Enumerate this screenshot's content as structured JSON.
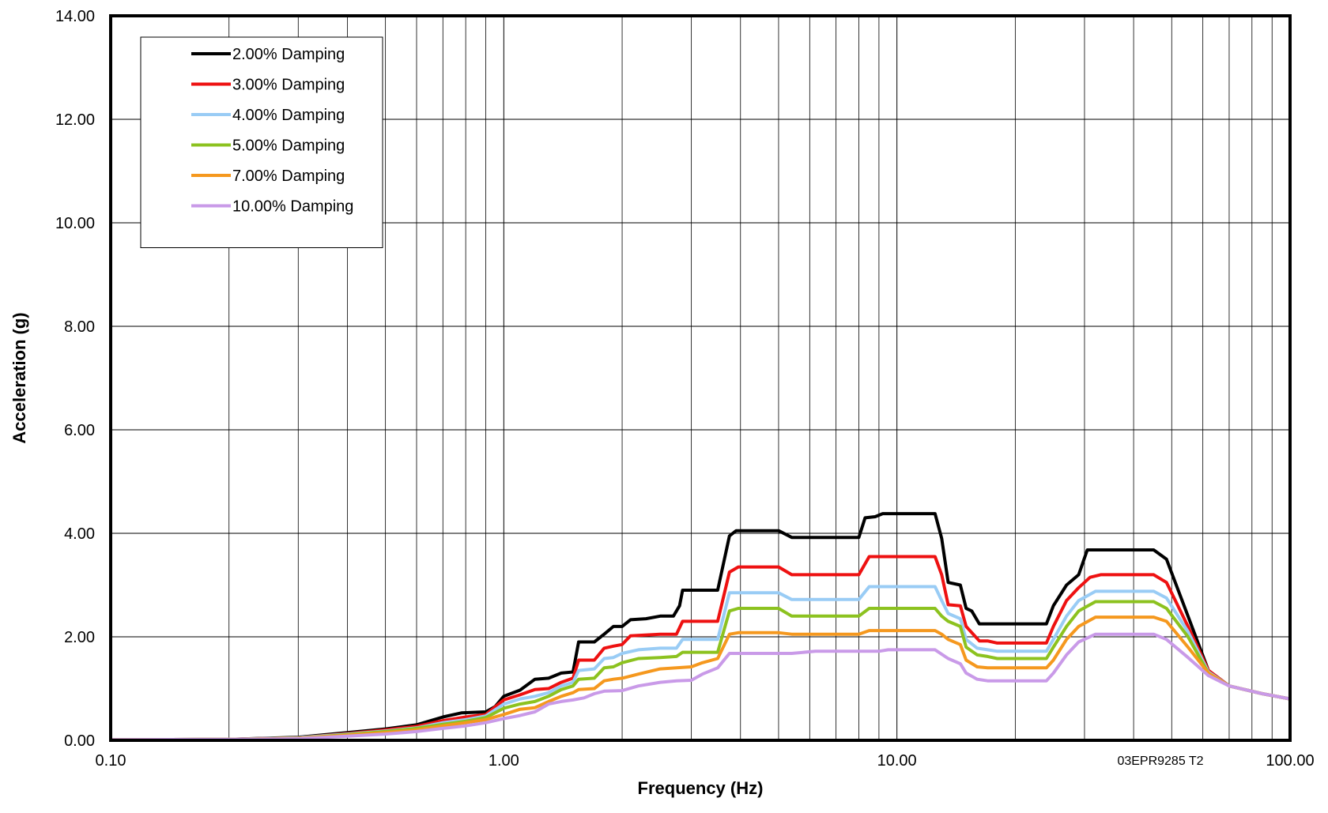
{
  "chart_data": {
    "type": "line",
    "title": "",
    "xlabel": "Frequency (Hz)",
    "ylabel": "Acceleration (g)",
    "x_scale": "log",
    "xlim": [
      0.1,
      100
    ],
    "ylim": [
      0,
      14
    ],
    "x_ticks": [
      0.1,
      1,
      10,
      100
    ],
    "x_tick_labels": [
      "0.10",
      "1.00",
      "10.00",
      "100.00"
    ],
    "y_ticks": [
      0,
      2,
      4,
      6,
      8,
      10,
      12,
      14
    ],
    "y_tick_labels": [
      "0.00",
      "2.00",
      "4.00",
      "6.00",
      "8.00",
      "10.00",
      "12.00",
      "14.00"
    ],
    "grid": "on",
    "legend_position": "top-left",
    "annotation": "03EPR9285 T2",
    "series": [
      {
        "name": "2.00% Damping",
        "color": "#000000",
        "points": [
          [
            0.1,
            0.01
          ],
          [
            0.2,
            0.02
          ],
          [
            0.3,
            0.06
          ],
          [
            0.4,
            0.15
          ],
          [
            0.5,
            0.22
          ],
          [
            0.6,
            0.3
          ],
          [
            0.7,
            0.45
          ],
          [
            0.78,
            0.53
          ],
          [
            0.9,
            0.55
          ],
          [
            0.95,
            0.65
          ],
          [
            1.0,
            0.85
          ],
          [
            1.1,
            0.97
          ],
          [
            1.2,
            1.18
          ],
          [
            1.3,
            1.2
          ],
          [
            1.4,
            1.3
          ],
          [
            1.5,
            1.32
          ],
          [
            1.55,
            1.9
          ],
          [
            1.7,
            1.9
          ],
          [
            1.8,
            2.05
          ],
          [
            1.9,
            2.2
          ],
          [
            2.0,
            2.2
          ],
          [
            2.1,
            2.33
          ],
          [
            2.3,
            2.35
          ],
          [
            2.5,
            2.4
          ],
          [
            2.7,
            2.4
          ],
          [
            2.8,
            2.6
          ],
          [
            2.85,
            2.9
          ],
          [
            3.5,
            2.9
          ],
          [
            3.75,
            3.95
          ],
          [
            3.9,
            4.05
          ],
          [
            5.0,
            4.05
          ],
          [
            5.4,
            3.92
          ],
          [
            8.0,
            3.92
          ],
          [
            8.3,
            4.3
          ],
          [
            8.8,
            4.32
          ],
          [
            9.2,
            4.38
          ],
          [
            12.5,
            4.38
          ],
          [
            13.0,
            3.9
          ],
          [
            13.5,
            3.05
          ],
          [
            14.5,
            3.0
          ],
          [
            15.0,
            2.55
          ],
          [
            15.5,
            2.5
          ],
          [
            16.2,
            2.25
          ],
          [
            24.0,
            2.25
          ],
          [
            25.0,
            2.6
          ],
          [
            27.0,
            3.0
          ],
          [
            29.0,
            3.2
          ],
          [
            30.5,
            3.68
          ],
          [
            45.0,
            3.68
          ],
          [
            48.5,
            3.5
          ],
          [
            55.0,
            2.4
          ],
          [
            62.0,
            1.35
          ],
          [
            70.0,
            1.05
          ],
          [
            85.0,
            0.9
          ],
          [
            100.0,
            0.8
          ]
        ]
      },
      {
        "name": "3.00% Damping",
        "color": "#ee1111",
        "points": [
          [
            0.1,
            0.01
          ],
          [
            0.2,
            0.02
          ],
          [
            0.3,
            0.05
          ],
          [
            0.4,
            0.13
          ],
          [
            0.5,
            0.2
          ],
          [
            0.6,
            0.27
          ],
          [
            0.7,
            0.38
          ],
          [
            0.8,
            0.45
          ],
          [
            0.9,
            0.5
          ],
          [
            1.0,
            0.78
          ],
          [
            1.1,
            0.88
          ],
          [
            1.2,
            0.98
          ],
          [
            1.3,
            1.0
          ],
          [
            1.4,
            1.12
          ],
          [
            1.5,
            1.2
          ],
          [
            1.55,
            1.55
          ],
          [
            1.7,
            1.55
          ],
          [
            1.8,
            1.78
          ],
          [
            1.9,
            1.82
          ],
          [
            2.0,
            1.85
          ],
          [
            2.1,
            2.02
          ],
          [
            2.5,
            2.05
          ],
          [
            2.75,
            2.05
          ],
          [
            2.85,
            2.3
          ],
          [
            3.5,
            2.3
          ],
          [
            3.75,
            3.25
          ],
          [
            3.95,
            3.35
          ],
          [
            5.0,
            3.35
          ],
          [
            5.4,
            3.2
          ],
          [
            8.0,
            3.2
          ],
          [
            8.5,
            3.55
          ],
          [
            12.5,
            3.55
          ],
          [
            13.0,
            3.2
          ],
          [
            13.5,
            2.62
          ],
          [
            14.5,
            2.6
          ],
          [
            15.0,
            2.2
          ],
          [
            16.2,
            1.92
          ],
          [
            17.0,
            1.92
          ],
          [
            18.0,
            1.88
          ],
          [
            24.0,
            1.88
          ],
          [
            25.0,
            2.2
          ],
          [
            27.0,
            2.7
          ],
          [
            29.0,
            2.95
          ],
          [
            31.0,
            3.15
          ],
          [
            33.0,
            3.2
          ],
          [
            45.0,
            3.2
          ],
          [
            48.5,
            3.05
          ],
          [
            55.0,
            2.2
          ],
          [
            62.0,
            1.35
          ],
          [
            70.0,
            1.05
          ],
          [
            85.0,
            0.9
          ],
          [
            100.0,
            0.8
          ]
        ]
      },
      {
        "name": "4.00% Damping",
        "color": "#99ccf5",
        "points": [
          [
            0.1,
            0.01
          ],
          [
            0.2,
            0.02
          ],
          [
            0.3,
            0.05
          ],
          [
            0.4,
            0.12
          ],
          [
            0.5,
            0.18
          ],
          [
            0.6,
            0.24
          ],
          [
            0.7,
            0.34
          ],
          [
            0.8,
            0.4
          ],
          [
            0.9,
            0.47
          ],
          [
            1.0,
            0.7
          ],
          [
            1.1,
            0.8
          ],
          [
            1.2,
            0.85
          ],
          [
            1.3,
            0.92
          ],
          [
            1.4,
            1.05
          ],
          [
            1.5,
            1.12
          ],
          [
            1.55,
            1.35
          ],
          [
            1.7,
            1.38
          ],
          [
            1.8,
            1.58
          ],
          [
            1.9,
            1.6
          ],
          [
            2.0,
            1.68
          ],
          [
            2.2,
            1.75
          ],
          [
            2.5,
            1.78
          ],
          [
            2.75,
            1.78
          ],
          [
            2.85,
            1.95
          ],
          [
            3.5,
            1.95
          ],
          [
            3.75,
            2.85
          ],
          [
            5.0,
            2.85
          ],
          [
            5.4,
            2.72
          ],
          [
            8.0,
            2.72
          ],
          [
            8.5,
            2.97
          ],
          [
            12.5,
            2.97
          ],
          [
            13.0,
            2.7
          ],
          [
            13.5,
            2.45
          ],
          [
            14.5,
            2.35
          ],
          [
            15.0,
            1.95
          ],
          [
            16.0,
            1.78
          ],
          [
            17.0,
            1.75
          ],
          [
            18.0,
            1.72
          ],
          [
            24.0,
            1.72
          ],
          [
            25.0,
            1.95
          ],
          [
            27.0,
            2.4
          ],
          [
            29.0,
            2.7
          ],
          [
            32.0,
            2.88
          ],
          [
            45.0,
            2.88
          ],
          [
            48.5,
            2.75
          ],
          [
            55.0,
            2.1
          ],
          [
            62.0,
            1.32
          ],
          [
            70.0,
            1.05
          ],
          [
            85.0,
            0.9
          ],
          [
            100.0,
            0.8
          ]
        ]
      },
      {
        "name": "5.00% Damping",
        "color": "#8cc21f",
        "points": [
          [
            0.1,
            0.01
          ],
          [
            0.2,
            0.02
          ],
          [
            0.3,
            0.04
          ],
          [
            0.4,
            0.11
          ],
          [
            0.5,
            0.17
          ],
          [
            0.6,
            0.23
          ],
          [
            0.7,
            0.31
          ],
          [
            0.8,
            0.37
          ],
          [
            0.9,
            0.44
          ],
          [
            1.0,
            0.62
          ],
          [
            1.1,
            0.7
          ],
          [
            1.2,
            0.75
          ],
          [
            1.3,
            0.85
          ],
          [
            1.4,
            0.98
          ],
          [
            1.5,
            1.05
          ],
          [
            1.55,
            1.18
          ],
          [
            1.7,
            1.2
          ],
          [
            1.8,
            1.4
          ],
          [
            1.9,
            1.42
          ],
          [
            2.0,
            1.5
          ],
          [
            2.2,
            1.58
          ],
          [
            2.5,
            1.6
          ],
          [
            2.75,
            1.62
          ],
          [
            2.85,
            1.7
          ],
          [
            3.5,
            1.7
          ],
          [
            3.75,
            2.5
          ],
          [
            3.95,
            2.55
          ],
          [
            5.0,
            2.55
          ],
          [
            5.4,
            2.4
          ],
          [
            8.0,
            2.4
          ],
          [
            8.5,
            2.55
          ],
          [
            12.5,
            2.55
          ],
          [
            13.0,
            2.4
          ],
          [
            13.5,
            2.3
          ],
          [
            14.5,
            2.2
          ],
          [
            15.0,
            1.8
          ],
          [
            16.0,
            1.65
          ],
          [
            17.0,
            1.62
          ],
          [
            18.0,
            1.58
          ],
          [
            24.0,
            1.58
          ],
          [
            25.0,
            1.8
          ],
          [
            27.0,
            2.2
          ],
          [
            29.0,
            2.5
          ],
          [
            32.0,
            2.68
          ],
          [
            45.0,
            2.68
          ],
          [
            48.5,
            2.55
          ],
          [
            55.0,
            2.0
          ],
          [
            62.0,
            1.3
          ],
          [
            70.0,
            1.05
          ],
          [
            85.0,
            0.9
          ],
          [
            100.0,
            0.8
          ]
        ]
      },
      {
        "name": "7.00% Damping",
        "color": "#f5981e",
        "points": [
          [
            0.1,
            0.01
          ],
          [
            0.2,
            0.02
          ],
          [
            0.3,
            0.04
          ],
          [
            0.4,
            0.1
          ],
          [
            0.5,
            0.15
          ],
          [
            0.6,
            0.2
          ],
          [
            0.7,
            0.28
          ],
          [
            0.8,
            0.34
          ],
          [
            0.9,
            0.4
          ],
          [
            1.0,
            0.5
          ],
          [
            1.1,
            0.6
          ],
          [
            1.2,
            0.63
          ],
          [
            1.3,
            0.75
          ],
          [
            1.4,
            0.85
          ],
          [
            1.5,
            0.92
          ],
          [
            1.55,
            0.98
          ],
          [
            1.7,
            1.0
          ],
          [
            1.8,
            1.15
          ],
          [
            1.9,
            1.18
          ],
          [
            2.0,
            1.2
          ],
          [
            2.2,
            1.28
          ],
          [
            2.5,
            1.38
          ],
          [
            2.75,
            1.4
          ],
          [
            3.0,
            1.42
          ],
          [
            3.2,
            1.5
          ],
          [
            3.5,
            1.58
          ],
          [
            3.75,
            2.05
          ],
          [
            3.95,
            2.08
          ],
          [
            5.0,
            2.08
          ],
          [
            5.4,
            2.05
          ],
          [
            8.0,
            2.05
          ],
          [
            8.5,
            2.12
          ],
          [
            12.5,
            2.12
          ],
          [
            13.0,
            2.05
          ],
          [
            13.5,
            1.95
          ],
          [
            14.5,
            1.85
          ],
          [
            15.0,
            1.55
          ],
          [
            16.0,
            1.42
          ],
          [
            17.0,
            1.4
          ],
          [
            24.0,
            1.4
          ],
          [
            25.0,
            1.55
          ],
          [
            27.0,
            1.95
          ],
          [
            29.0,
            2.2
          ],
          [
            32.0,
            2.38
          ],
          [
            45.0,
            2.38
          ],
          [
            48.5,
            2.3
          ],
          [
            55.0,
            1.8
          ],
          [
            62.0,
            1.3
          ],
          [
            70.0,
            1.05
          ],
          [
            85.0,
            0.9
          ],
          [
            100.0,
            0.8
          ]
        ]
      },
      {
        "name": "10.00% Damping",
        "color": "#c99ae8",
        "points": [
          [
            0.1,
            0.01
          ],
          [
            0.2,
            0.02
          ],
          [
            0.3,
            0.03
          ],
          [
            0.4,
            0.08
          ],
          [
            0.5,
            0.12
          ],
          [
            0.6,
            0.17
          ],
          [
            0.7,
            0.23
          ],
          [
            0.8,
            0.28
          ],
          [
            0.9,
            0.34
          ],
          [
            1.0,
            0.42
          ],
          [
            1.1,
            0.48
          ],
          [
            1.2,
            0.55
          ],
          [
            1.3,
            0.7
          ],
          [
            1.4,
            0.75
          ],
          [
            1.5,
            0.78
          ],
          [
            1.6,
            0.82
          ],
          [
            1.7,
            0.9
          ],
          [
            1.8,
            0.95
          ],
          [
            2.0,
            0.96
          ],
          [
            2.2,
            1.05
          ],
          [
            2.5,
            1.12
          ],
          [
            2.75,
            1.15
          ],
          [
            3.0,
            1.16
          ],
          [
            3.2,
            1.28
          ],
          [
            3.5,
            1.4
          ],
          [
            3.75,
            1.68
          ],
          [
            5.0,
            1.68
          ],
          [
            5.4,
            1.68
          ],
          [
            6.2,
            1.72
          ],
          [
            9.0,
            1.72
          ],
          [
            9.5,
            1.75
          ],
          [
            12.5,
            1.75
          ],
          [
            13.5,
            1.58
          ],
          [
            14.5,
            1.48
          ],
          [
            15.0,
            1.3
          ],
          [
            16.0,
            1.18
          ],
          [
            17.0,
            1.15
          ],
          [
            24.0,
            1.15
          ],
          [
            25.0,
            1.3
          ],
          [
            27.0,
            1.65
          ],
          [
            29.0,
            1.9
          ],
          [
            32.0,
            2.05
          ],
          [
            45.0,
            2.05
          ],
          [
            48.5,
            1.95
          ],
          [
            55.0,
            1.6
          ],
          [
            62.0,
            1.25
          ],
          [
            70.0,
            1.05
          ],
          [
            85.0,
            0.9
          ],
          [
            100.0,
            0.8
          ]
        ]
      }
    ]
  }
}
